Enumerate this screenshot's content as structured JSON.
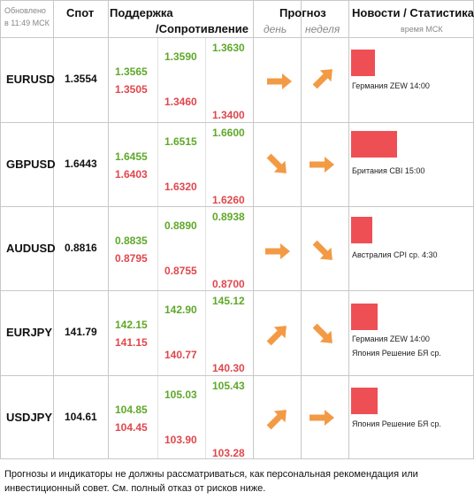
{
  "header": {
    "updated": [
      "Обновлено",
      "в 11:49 МСК"
    ],
    "spot": "Спот",
    "support": "Поддержка",
    "resistance": "/Сопротивление",
    "forecast": "Прогноз",
    "day": "день",
    "week": "неделя",
    "news": "Новости / Статистика",
    "time": "время МСК"
  },
  "rows": [
    {
      "pair": "EURUSD",
      "spot": "1.3554",
      "levels": [
        "1.3630",
        "1.3590",
        "1.3565",
        "1.3505",
        "1.3460",
        "1.3400"
      ],
      "news": [
        "Германия ZEW 14:00"
      ]
    },
    {
      "pair": "GBPUSD",
      "spot": "1.6443",
      "levels": [
        "1.6600",
        "1.6515",
        "1.6455",
        "1.6403",
        "1.6320",
        "1.6260"
      ],
      "news": [
        "Британия CBI 15:00"
      ]
    },
    {
      "pair": "AUDUSD",
      "spot": "0.8816",
      "levels": [
        "0.8938",
        "0.8890",
        "0.8835",
        "0.8795",
        "0.8755",
        "0.8700"
      ],
      "news": [
        "Австралия CPI ср. 4:30"
      ]
    },
    {
      "pair": "EURJPY",
      "spot": "141.79",
      "levels": [
        "145.12",
        "142.90",
        "142.15",
        "141.15",
        "140.77",
        "140.30"
      ],
      "news": [
        "Германия ZEW 14:00",
        "Япония Решение БЯ ср."
      ]
    },
    {
      "pair": "USDJPY",
      "spot": "104.61",
      "levels": [
        "105.43",
        "105.03",
        "104.85",
        "104.45",
        "103.90",
        "103.28"
      ],
      "news": [
        "Япония Решение БЯ ср."
      ]
    }
  ],
  "footer": "Прогнозы и индикаторы не должны рассматриваться, как персональная рекомендация или инвестиционный совет. См. полный отказ от рисков ниже."
}
